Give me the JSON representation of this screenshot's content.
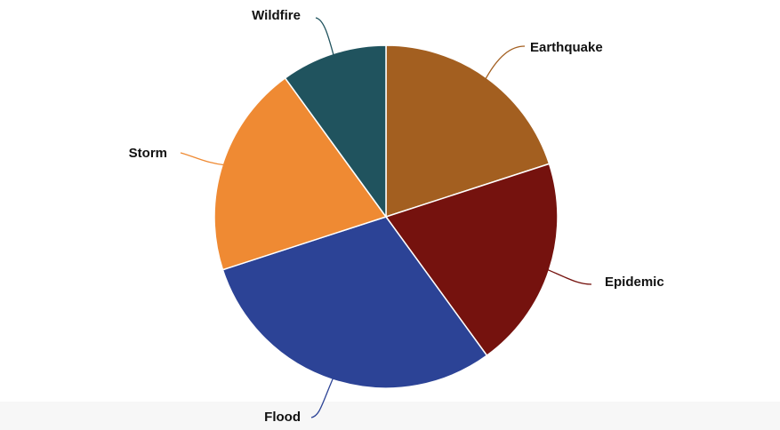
{
  "chart_data": {
    "type": "pie",
    "title": "",
    "slices": [
      {
        "label": "Earthquake",
        "value": 20,
        "color": "#a35f20"
      },
      {
        "label": "Epidemic",
        "value": 20,
        "color": "#75120e"
      },
      {
        "label": "Flood",
        "value": 30,
        "color": "#2c4396"
      },
      {
        "label": "Storm",
        "value": 20,
        "color": "#ef8a33"
      },
      {
        "label": "Wildfire",
        "value": 10,
        "color": "#20535e"
      }
    ],
    "start_angle": "12 o'clock",
    "direction": "clockwise",
    "legend": "none",
    "slice_border_color": "#ffffff"
  }
}
